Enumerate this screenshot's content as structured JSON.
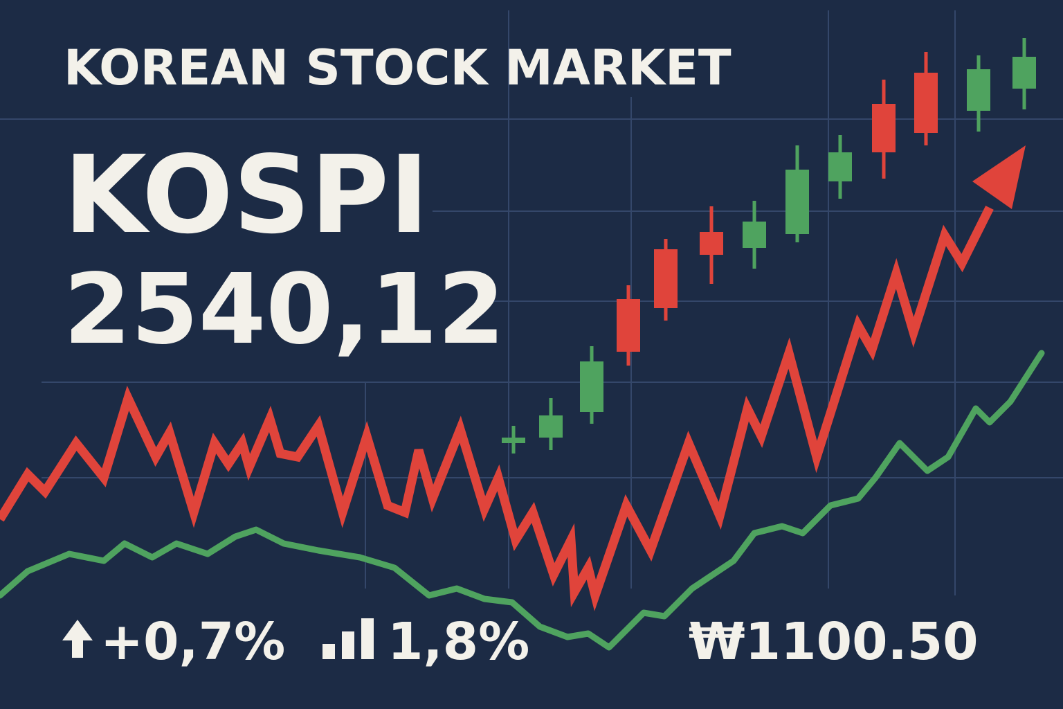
{
  "header": {
    "title": "KOREAN STOCK MARKET"
  },
  "index": {
    "name": "KOSPI",
    "value": "2540,12"
  },
  "stats": {
    "change": "+0,7%",
    "volume": "1,8%",
    "exchange_rate": "₩1100.50"
  }
}
